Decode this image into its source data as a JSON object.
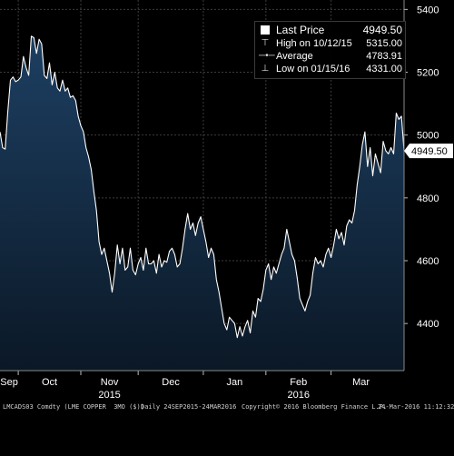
{
  "chart_data": {
    "type": "area",
    "x_tick_labels": [
      "Sep",
      "Oct",
      "Nov",
      "Dec",
      "Jan",
      "Feb",
      "Mar"
    ],
    "year_labels": [
      {
        "label": "2015",
        "month": "Nov"
      },
      {
        "label": "2016",
        "month": "Feb"
      }
    ],
    "y_ticks": [
      4400,
      4600,
      4800,
      5000,
      5200,
      5400
    ],
    "ylim": [
      4250,
      5430
    ],
    "grid": true,
    "legend_position": "top-right",
    "last_price_tag": "4949.50",
    "colors": {
      "background": "#000000",
      "fill_top": "#1d3f62",
      "fill_bottom": "#0b1826",
      "line": "#ffffff",
      "grid": "#3c3c3c"
    },
    "series": [
      {
        "values": [
          5010,
          4960,
          4955,
          5075,
          5175,
          5185,
          5170,
          5175,
          5185,
          5250,
          5215,
          5190,
          5315,
          5310,
          5260,
          5305,
          5290,
          5190,
          5180,
          5230,
          5160,
          5200,
          5150,
          5140,
          5175,
          5140,
          5150,
          5120,
          5125,
          5110,
          5060,
          5030,
          5010,
          4960,
          4930,
          4890,
          4820,
          4760,
          4660,
          4620,
          4640,
          4600,
          4560,
          4500,
          4560,
          4650,
          4590,
          4640,
          4570,
          4580,
          4640,
          4570,
          4555,
          4590,
          4610,
          4570,
          4640,
          4590,
          4590,
          4600,
          4560,
          4620,
          4580,
          4600,
          4595,
          4630,
          4640,
          4620,
          4580,
          4590,
          4640,
          4700,
          4750,
          4700,
          4720,
          4680,
          4720,
          4740,
          4700,
          4660,
          4610,
          4640,
          4620,
          4540,
          4500,
          4450,
          4400,
          4380,
          4420,
          4410,
          4400,
          4355,
          4390,
          4360,
          4390,
          4410,
          4370,
          4440,
          4420,
          4480,
          4470,
          4510,
          4570,
          4590,
          4540,
          4580,
          4560,
          4590,
          4620,
          4640,
          4700,
          4660,
          4620,
          4600,
          4545,
          4480,
          4460,
          4440,
          4470,
          4490,
          4560,
          4610,
          4590,
          4600,
          4580,
          4620,
          4640,
          4610,
          4650,
          4700,
          4670,
          4690,
          4650,
          4710,
          4730,
          4720,
          4760,
          4840,
          4900,
          4970,
          5010,
          4900,
          4960,
          4870,
          4940,
          4910,
          4880,
          4980,
          4950,
          4940,
          4960,
          4940,
          5070,
          5050,
          5060,
          4949.5
        ]
      }
    ]
  },
  "legend": {
    "rows": [
      {
        "symbol": "square-icon",
        "label": "Last Price",
        "value": "4949.50"
      },
      {
        "symbol": "high-marker-icon",
        "label": "High on 10/12/15",
        "value": "5315.00"
      },
      {
        "symbol": "average-marker-icon",
        "label": "Average",
        "value": "4783.91"
      },
      {
        "symbol": "low-marker-icon",
        "label": "Low on 01/15/16",
        "value": "4331.00"
      }
    ]
  },
  "footer": {
    "ticker": "LMCADS03 Comdty (LME COPPER  3MO ($))",
    "range": "Daily 24SEP2015-24MAR2016",
    "copyright": "Copyright© 2016 Bloomberg Finance L.P.",
    "timestamp": "24-Mar-2016 11:12:32"
  }
}
